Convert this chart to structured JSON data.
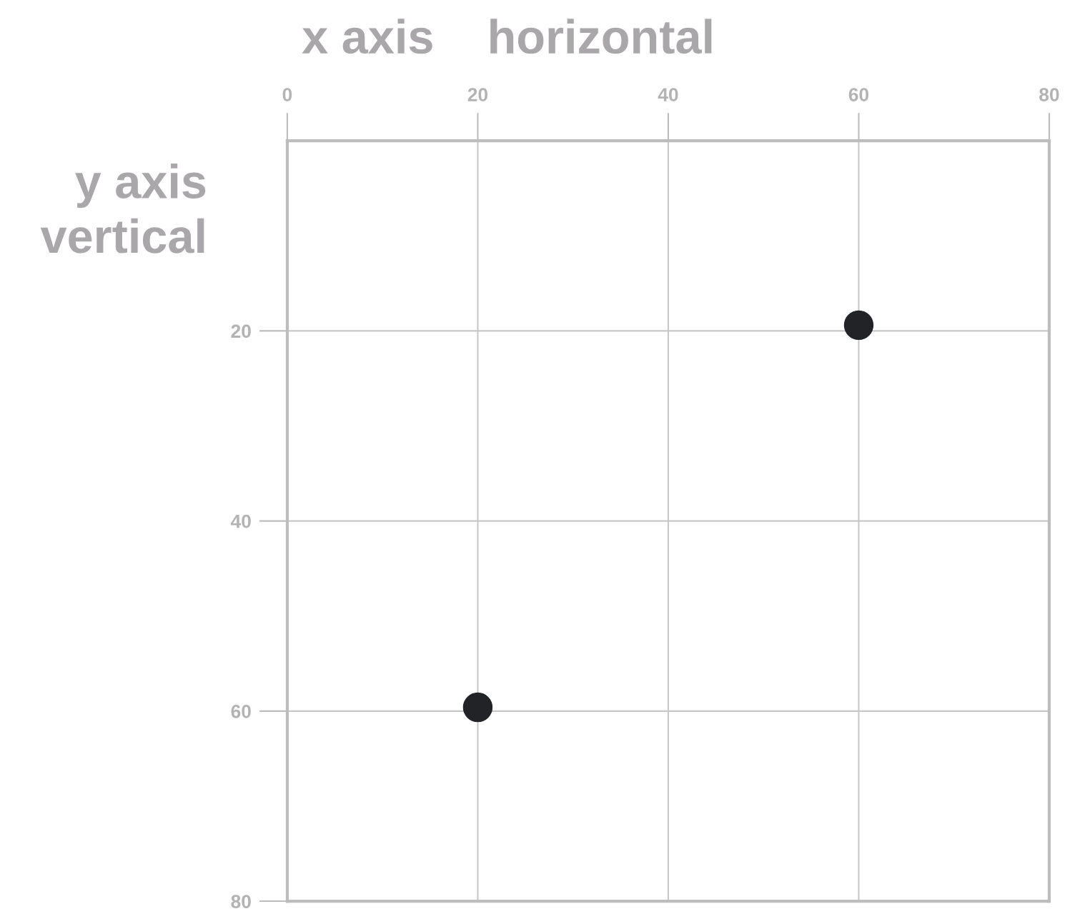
{
  "chart_data": {
    "type": "scatter",
    "xlabel": "x axis    horizontal",
    "ylabel": "y axis\nvertical",
    "x": [
      20,
      60
    ],
    "series": [
      {
        "color": "#222327",
        "values": [
          59.6,
          19.4
        ]
      }
    ],
    "xlim": [
      0,
      80
    ],
    "xticks": [
      0,
      20,
      40,
      60,
      80
    ],
    "ylim": [
      80,
      0
    ],
    "yticks": [
      20,
      40,
      60,
      80
    ],
    "grid": true,
    "marker": "circle"
  }
}
